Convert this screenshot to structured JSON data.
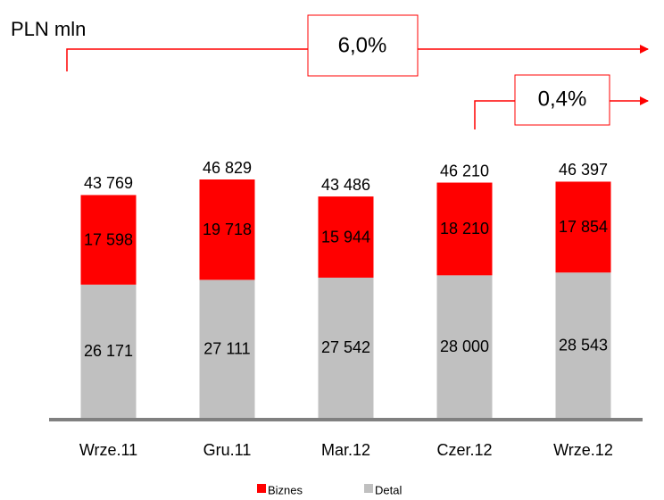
{
  "chart_data": {
    "type": "stacked_bar",
    "unit_label": "PLN mln",
    "categories": [
      "Wrze.11",
      "Gru.11",
      "Mar.12",
      "Czer.12",
      "Wrze.12"
    ],
    "series": [
      {
        "name": "Detal",
        "color": "#c0c0c0",
        "values": [
          26171,
          27111,
          27542,
          28000,
          28543
        ],
        "value_labels": [
          "26 171",
          "27 111",
          "27 542",
          "28 000",
          "28 543"
        ]
      },
      {
        "name": "Biznes",
        "color": "#ff0000",
        "values": [
          17598,
          19718,
          15944,
          18210,
          17854
        ],
        "value_labels": [
          "17 598",
          "19 718",
          "15 944",
          "18 210",
          "17 854"
        ]
      }
    ],
    "totals": {
      "values": [
        43769,
        46829,
        43486,
        46210,
        46397
      ],
      "value_labels": [
        "43 769",
        "46 829",
        "43 486",
        "46 210",
        "46 397"
      ]
    },
    "annotations": [
      "6,0%",
      "0,4%"
    ]
  }
}
